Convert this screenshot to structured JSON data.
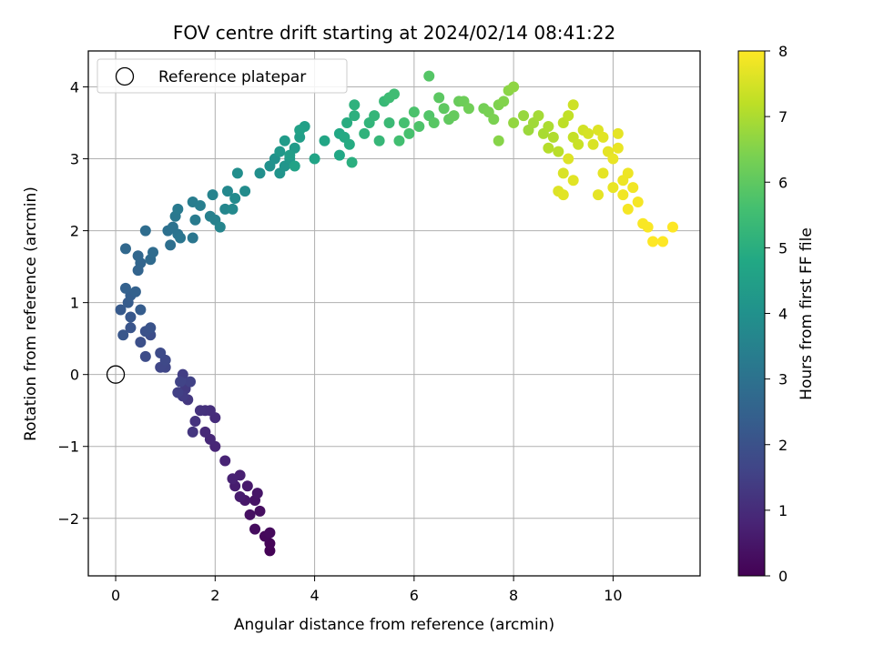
{
  "chart_data": {
    "type": "scatter",
    "title": "FOV centre drift starting at 2024/02/14 08:41:22",
    "xlabel": "Angular distance from reference (arcmin)",
    "ylabel": "Rotation from reference (arcmin)",
    "xlim": [
      -0.55,
      11.75
    ],
    "ylim": [
      -2.8,
      4.5
    ],
    "xticks": [
      "0",
      "2",
      "4",
      "6",
      "8",
      "10"
    ],
    "yticks": [
      "−2",
      "−1",
      "0",
      "1",
      "2",
      "3",
      "4"
    ],
    "grid": true,
    "legend": {
      "placement": "top-left",
      "label": "Reference platepar"
    },
    "reference_point": {
      "x": 0,
      "y": 0
    },
    "colorbar": {
      "label": "Hours from first FF file",
      "range": [
        0,
        8
      ],
      "ticks": [
        "0",
        "1",
        "2",
        "3",
        "4",
        "5",
        "6",
        "7",
        "8"
      ],
      "colormap": "viridis"
    },
    "series": [
      {
        "points": [
          {
            "x": 3.1,
            "y": -2.45,
            "t": 0.05
          },
          {
            "x": 3.1,
            "y": -2.35,
            "t": 0.1
          },
          {
            "x": 3.0,
            "y": -2.25,
            "t": 0.15
          },
          {
            "x": 3.1,
            "y": -2.2,
            "t": 0.2
          },
          {
            "x": 2.8,
            "y": -2.15,
            "t": 0.25
          },
          {
            "x": 2.9,
            "y": -1.9,
            "t": 0.3
          },
          {
            "x": 2.7,
            "y": -1.95,
            "t": 0.35
          },
          {
            "x": 2.8,
            "y": -1.75,
            "t": 0.4
          },
          {
            "x": 2.85,
            "y": -1.65,
            "t": 0.45
          },
          {
            "x": 2.6,
            "y": -1.75,
            "t": 0.5
          },
          {
            "x": 2.65,
            "y": -1.55,
            "t": 0.55
          },
          {
            "x": 2.5,
            "y": -1.7,
            "t": 0.6
          },
          {
            "x": 2.4,
            "y": -1.55,
            "t": 0.65
          },
          {
            "x": 2.5,
            "y": -1.4,
            "t": 0.7
          },
          {
            "x": 2.35,
            "y": -1.45,
            "t": 0.75
          },
          {
            "x": 2.2,
            "y": -1.2,
            "t": 0.8
          },
          {
            "x": 2.0,
            "y": -1.0,
            "t": 0.85
          },
          {
            "x": 1.9,
            "y": -0.9,
            "t": 0.9
          },
          {
            "x": 1.8,
            "y": -0.8,
            "t": 0.95
          },
          {
            "x": 2.0,
            "y": -0.6,
            "t": 1.0
          },
          {
            "x": 1.9,
            "y": -0.5,
            "t": 1.05
          },
          {
            "x": 1.8,
            "y": -0.5,
            "t": 1.1
          },
          {
            "x": 1.7,
            "y": -0.5,
            "t": 1.15
          },
          {
            "x": 1.6,
            "y": -0.65,
            "t": 1.2
          },
          {
            "x": 1.55,
            "y": -0.8,
            "t": 1.25
          },
          {
            "x": 1.45,
            "y": -0.35,
            "t": 1.3
          },
          {
            "x": 1.4,
            "y": -0.2,
            "t": 1.35
          },
          {
            "x": 1.35,
            "y": -0.3,
            "t": 1.4
          },
          {
            "x": 1.35,
            "y": 0.0,
            "t": 1.45
          },
          {
            "x": 1.25,
            "y": -0.25,
            "t": 1.5
          },
          {
            "x": 1.5,
            "y": -0.1,
            "t": 1.55
          },
          {
            "x": 1.3,
            "y": -0.1,
            "t": 1.6
          },
          {
            "x": 1.0,
            "y": 0.1,
            "t": 1.65
          },
          {
            "x": 0.9,
            "y": 0.1,
            "t": 1.7
          },
          {
            "x": 1.0,
            "y": 0.2,
            "t": 1.75
          },
          {
            "x": 0.9,
            "y": 0.3,
            "t": 1.8
          },
          {
            "x": 0.6,
            "y": 0.25,
            "t": 1.85
          },
          {
            "x": 0.7,
            "y": 0.55,
            "t": 1.9
          },
          {
            "x": 0.5,
            "y": 0.45,
            "t": 1.95
          },
          {
            "x": 0.6,
            "y": 0.6,
            "t": 2.0
          },
          {
            "x": 0.7,
            "y": 0.65,
            "t": 2.05
          },
          {
            "x": 0.3,
            "y": 0.65,
            "t": 2.1
          },
          {
            "x": 0.15,
            "y": 0.55,
            "t": 2.15
          },
          {
            "x": 0.3,
            "y": 0.8,
            "t": 2.2
          },
          {
            "x": 0.1,
            "y": 0.9,
            "t": 2.25
          },
          {
            "x": 0.25,
            "y": 1.0,
            "t": 2.3
          },
          {
            "x": 0.5,
            "y": 0.9,
            "t": 2.35
          },
          {
            "x": 0.3,
            "y": 1.1,
            "t": 2.4
          },
          {
            "x": 0.2,
            "y": 1.2,
            "t": 2.45
          },
          {
            "x": 0.4,
            "y": 1.15,
            "t": 2.5
          },
          {
            "x": 0.45,
            "y": 1.45,
            "t": 2.55
          },
          {
            "x": 0.5,
            "y": 1.55,
            "t": 2.6
          },
          {
            "x": 0.45,
            "y": 1.65,
            "t": 2.65
          },
          {
            "x": 0.2,
            "y": 1.75,
            "t": 2.7
          },
          {
            "x": 0.7,
            "y": 1.6,
            "t": 2.75
          },
          {
            "x": 0.75,
            "y": 1.7,
            "t": 2.8
          },
          {
            "x": 0.6,
            "y": 2.0,
            "t": 2.85
          },
          {
            "x": 1.1,
            "y": 1.8,
            "t": 2.9
          },
          {
            "x": 1.05,
            "y": 2.0,
            "t": 2.95
          },
          {
            "x": 1.15,
            "y": 2.05,
            "t": 3.0
          },
          {
            "x": 1.25,
            "y": 1.95,
            "t": 3.05
          },
          {
            "x": 1.3,
            "y": 1.9,
            "t": 3.1
          },
          {
            "x": 1.55,
            "y": 1.9,
            "t": 3.15
          },
          {
            "x": 1.2,
            "y": 2.2,
            "t": 3.2
          },
          {
            "x": 1.25,
            "y": 2.3,
            "t": 3.25
          },
          {
            "x": 1.6,
            "y": 2.15,
            "t": 3.3
          },
          {
            "x": 1.55,
            "y": 2.4,
            "t": 3.35
          },
          {
            "x": 1.7,
            "y": 2.35,
            "t": 3.4
          },
          {
            "x": 1.9,
            "y": 2.2,
            "t": 3.45
          },
          {
            "x": 2.0,
            "y": 2.15,
            "t": 3.5
          },
          {
            "x": 1.95,
            "y": 2.5,
            "t": 3.55
          },
          {
            "x": 2.1,
            "y": 2.05,
            "t": 3.6
          },
          {
            "x": 2.2,
            "y": 2.3,
            "t": 3.65
          },
          {
            "x": 2.25,
            "y": 2.55,
            "t": 3.7
          },
          {
            "x": 2.35,
            "y": 2.3,
            "t": 3.75
          },
          {
            "x": 2.4,
            "y": 2.45,
            "t": 3.8
          },
          {
            "x": 2.6,
            "y": 2.55,
            "t": 3.85
          },
          {
            "x": 2.45,
            "y": 2.8,
            "t": 3.9
          },
          {
            "x": 2.9,
            "y": 2.8,
            "t": 3.95
          },
          {
            "x": 3.1,
            "y": 2.9,
            "t": 4.0
          },
          {
            "x": 3.2,
            "y": 3.0,
            "t": 4.05
          },
          {
            "x": 3.3,
            "y": 2.8,
            "t": 4.1
          },
          {
            "x": 3.4,
            "y": 2.9,
            "t": 4.15
          },
          {
            "x": 3.5,
            "y": 3.0,
            "t": 4.2
          },
          {
            "x": 3.3,
            "y": 3.1,
            "t": 4.25
          },
          {
            "x": 3.6,
            "y": 3.15,
            "t": 4.3
          },
          {
            "x": 3.4,
            "y": 3.25,
            "t": 4.35
          },
          {
            "x": 3.5,
            "y": 3.05,
            "t": 4.4
          },
          {
            "x": 3.7,
            "y": 3.3,
            "t": 4.45
          },
          {
            "x": 3.8,
            "y": 3.45,
            "t": 4.5
          },
          {
            "x": 3.7,
            "y": 3.4,
            "t": 4.55
          },
          {
            "x": 3.6,
            "y": 2.9,
            "t": 4.6
          },
          {
            "x": 4.0,
            "y": 3.0,
            "t": 4.65
          },
          {
            "x": 4.2,
            "y": 3.25,
            "t": 4.7
          },
          {
            "x": 4.5,
            "y": 3.05,
            "t": 4.75
          },
          {
            "x": 4.5,
            "y": 3.35,
            "t": 4.8
          },
          {
            "x": 4.6,
            "y": 3.3,
            "t": 4.85
          },
          {
            "x": 4.7,
            "y": 3.2,
            "t": 4.9
          },
          {
            "x": 4.65,
            "y": 3.5,
            "t": 4.95
          },
          {
            "x": 4.75,
            "y": 2.95,
            "t": 5.0
          },
          {
            "x": 4.8,
            "y": 3.6,
            "t": 5.05
          },
          {
            "x": 4.8,
            "y": 3.75,
            "t": 5.1
          },
          {
            "x": 5.0,
            "y": 3.35,
            "t": 5.15
          },
          {
            "x": 5.1,
            "y": 3.5,
            "t": 5.2
          },
          {
            "x": 5.2,
            "y": 3.6,
            "t": 5.25
          },
          {
            "x": 5.3,
            "y": 3.25,
            "t": 5.3
          },
          {
            "x": 5.4,
            "y": 3.8,
            "t": 5.35
          },
          {
            "x": 5.5,
            "y": 3.5,
            "t": 5.4
          },
          {
            "x": 5.5,
            "y": 3.85,
            "t": 5.45
          },
          {
            "x": 5.6,
            "y": 3.9,
            "t": 5.5
          },
          {
            "x": 5.7,
            "y": 3.25,
            "t": 5.55
          },
          {
            "x": 5.8,
            "y": 3.5,
            "t": 5.6
          },
          {
            "x": 5.9,
            "y": 3.35,
            "t": 5.65
          },
          {
            "x": 6.0,
            "y": 3.65,
            "t": 5.7
          },
          {
            "x": 6.1,
            "y": 3.45,
            "t": 5.75
          },
          {
            "x": 6.3,
            "y": 3.6,
            "t": 5.8
          },
          {
            "x": 6.3,
            "y": 4.15,
            "t": 5.85
          },
          {
            "x": 6.4,
            "y": 3.5,
            "t": 5.9
          },
          {
            "x": 6.5,
            "y": 3.85,
            "t": 5.95
          },
          {
            "x": 6.6,
            "y": 3.7,
            "t": 6.0
          },
          {
            "x": 6.7,
            "y": 3.55,
            "t": 6.05
          },
          {
            "x": 6.8,
            "y": 3.6,
            "t": 6.1
          },
          {
            "x": 6.9,
            "y": 3.8,
            "t": 6.15
          },
          {
            "x": 7.0,
            "y": 3.8,
            "t": 6.2
          },
          {
            "x": 7.1,
            "y": 3.7,
            "t": 6.25
          },
          {
            "x": 7.4,
            "y": 3.7,
            "t": 6.3
          },
          {
            "x": 7.5,
            "y": 3.65,
            "t": 6.35
          },
          {
            "x": 7.6,
            "y": 3.55,
            "t": 6.4
          },
          {
            "x": 7.7,
            "y": 3.75,
            "t": 6.45
          },
          {
            "x": 7.8,
            "y": 3.8,
            "t": 6.5
          },
          {
            "x": 7.7,
            "y": 3.25,
            "t": 6.55
          },
          {
            "x": 7.9,
            "y": 3.95,
            "t": 6.6
          },
          {
            "x": 8.0,
            "y": 4.0,
            "t": 6.65
          },
          {
            "x": 8.0,
            "y": 3.5,
            "t": 6.7
          },
          {
            "x": 8.2,
            "y": 3.6,
            "t": 6.75
          },
          {
            "x": 8.3,
            "y": 3.4,
            "t": 6.8
          },
          {
            "x": 8.4,
            "y": 3.5,
            "t": 6.85
          },
          {
            "x": 8.5,
            "y": 3.6,
            "t": 6.9
          },
          {
            "x": 8.6,
            "y": 3.35,
            "t": 6.95
          },
          {
            "x": 8.7,
            "y": 3.45,
            "t": 7.0
          },
          {
            "x": 8.8,
            "y": 3.3,
            "t": 7.05
          },
          {
            "x": 8.7,
            "y": 3.15,
            "t": 7.1
          },
          {
            "x": 8.9,
            "y": 3.1,
            "t": 7.15
          },
          {
            "x": 9.0,
            "y": 3.5,
            "t": 7.2
          },
          {
            "x": 9.1,
            "y": 3.6,
            "t": 7.25
          },
          {
            "x": 9.2,
            "y": 3.3,
            "t": 7.3
          },
          {
            "x": 9.3,
            "y": 3.2,
            "t": 7.35
          },
          {
            "x": 9.2,
            "y": 3.75,
            "t": 7.4
          },
          {
            "x": 9.4,
            "y": 3.4,
            "t": 7.45
          },
          {
            "x": 9.5,
            "y": 3.35,
            "t": 7.5
          },
          {
            "x": 9.6,
            "y": 3.2,
            "t": 7.55
          },
          {
            "x": 9.7,
            "y": 3.4,
            "t": 7.6
          },
          {
            "x": 9.8,
            "y": 3.3,
            "t": 7.65
          },
          {
            "x": 9.0,
            "y": 2.8,
            "t": 7.55
          },
          {
            "x": 9.1,
            "y": 3.0,
            "t": 7.6
          },
          {
            "x": 8.9,
            "y": 2.55,
            "t": 7.6
          },
          {
            "x": 9.2,
            "y": 2.7,
            "t": 7.65
          },
          {
            "x": 9.0,
            "y": 2.5,
            "t": 7.65
          },
          {
            "x": 9.9,
            "y": 3.1,
            "t": 7.7
          },
          {
            "x": 10.0,
            "y": 3.0,
            "t": 7.75
          },
          {
            "x": 10.1,
            "y": 3.15,
            "t": 7.75
          },
          {
            "x": 10.2,
            "y": 2.7,
            "t": 7.8
          },
          {
            "x": 10.3,
            "y": 2.8,
            "t": 7.8
          },
          {
            "x": 10.2,
            "y": 2.5,
            "t": 7.85
          },
          {
            "x": 10.4,
            "y": 2.6,
            "t": 7.85
          },
          {
            "x": 10.3,
            "y": 2.3,
            "t": 7.9
          },
          {
            "x": 10.5,
            "y": 2.4,
            "t": 7.9
          },
          {
            "x": 10.6,
            "y": 2.1,
            "t": 7.95
          },
          {
            "x": 10.7,
            "y": 2.05,
            "t": 7.95
          },
          {
            "x": 10.8,
            "y": 1.85,
            "t": 8.0
          },
          {
            "x": 11.0,
            "y": 1.85,
            "t": 8.0
          },
          {
            "x": 11.2,
            "y": 2.05,
            "t": 8.0
          },
          {
            "x": 9.7,
            "y": 2.5,
            "t": 7.7
          },
          {
            "x": 9.8,
            "y": 2.8,
            "t": 7.7
          },
          {
            "x": 10.0,
            "y": 2.6,
            "t": 7.75
          },
          {
            "x": 10.1,
            "y": 3.35,
            "t": 7.7
          }
        ]
      }
    ]
  }
}
